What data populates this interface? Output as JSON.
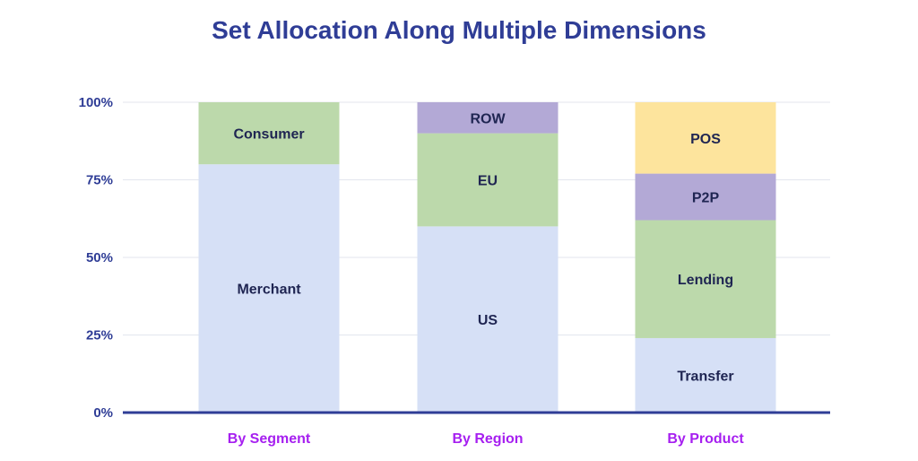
{
  "chart_data": {
    "type": "bar",
    "stacked": true,
    "title": "Set Allocation Along Multiple Dimensions",
    "xlabel": "",
    "ylabel": "",
    "ylim": [
      0,
      100
    ],
    "y_ticks": [
      "0%",
      "25%",
      "50%",
      "75%",
      "100%"
    ],
    "grid": true,
    "categories": [
      "By Segment",
      "By Region",
      "By Product"
    ],
    "stacks": [
      {
        "category": "By Segment",
        "segments": [
          {
            "label": "Merchant",
            "value": 80,
            "color": "#d6e0f6"
          },
          {
            "label": "Consumer",
            "value": 20,
            "color": "#bcd9ab"
          }
        ]
      },
      {
        "category": "By Region",
        "segments": [
          {
            "label": "US",
            "value": 60,
            "color": "#d6e0f6"
          },
          {
            "label": "EU",
            "value": 30,
            "color": "#bcd9ab"
          },
          {
            "label": "ROW",
            "value": 10,
            "color": "#b3a9d6"
          }
        ]
      },
      {
        "category": "By Product",
        "segments": [
          {
            "label": "Transfer",
            "value": 24,
            "color": "#d6e0f6"
          },
          {
            "label": "Lending",
            "value": 38,
            "color": "#bcd9ab"
          },
          {
            "label": "P2P",
            "value": 15,
            "color": "#b3a9d6"
          },
          {
            "label": "POS",
            "value": 23,
            "color": "#fde49d"
          }
        ]
      }
    ],
    "colors": {
      "title": "#2f3d96",
      "axis": "#2f3d96",
      "category_label": "#a61ff0",
      "segment_label": "#1f2552",
      "grid": "#e3e6ee"
    }
  }
}
